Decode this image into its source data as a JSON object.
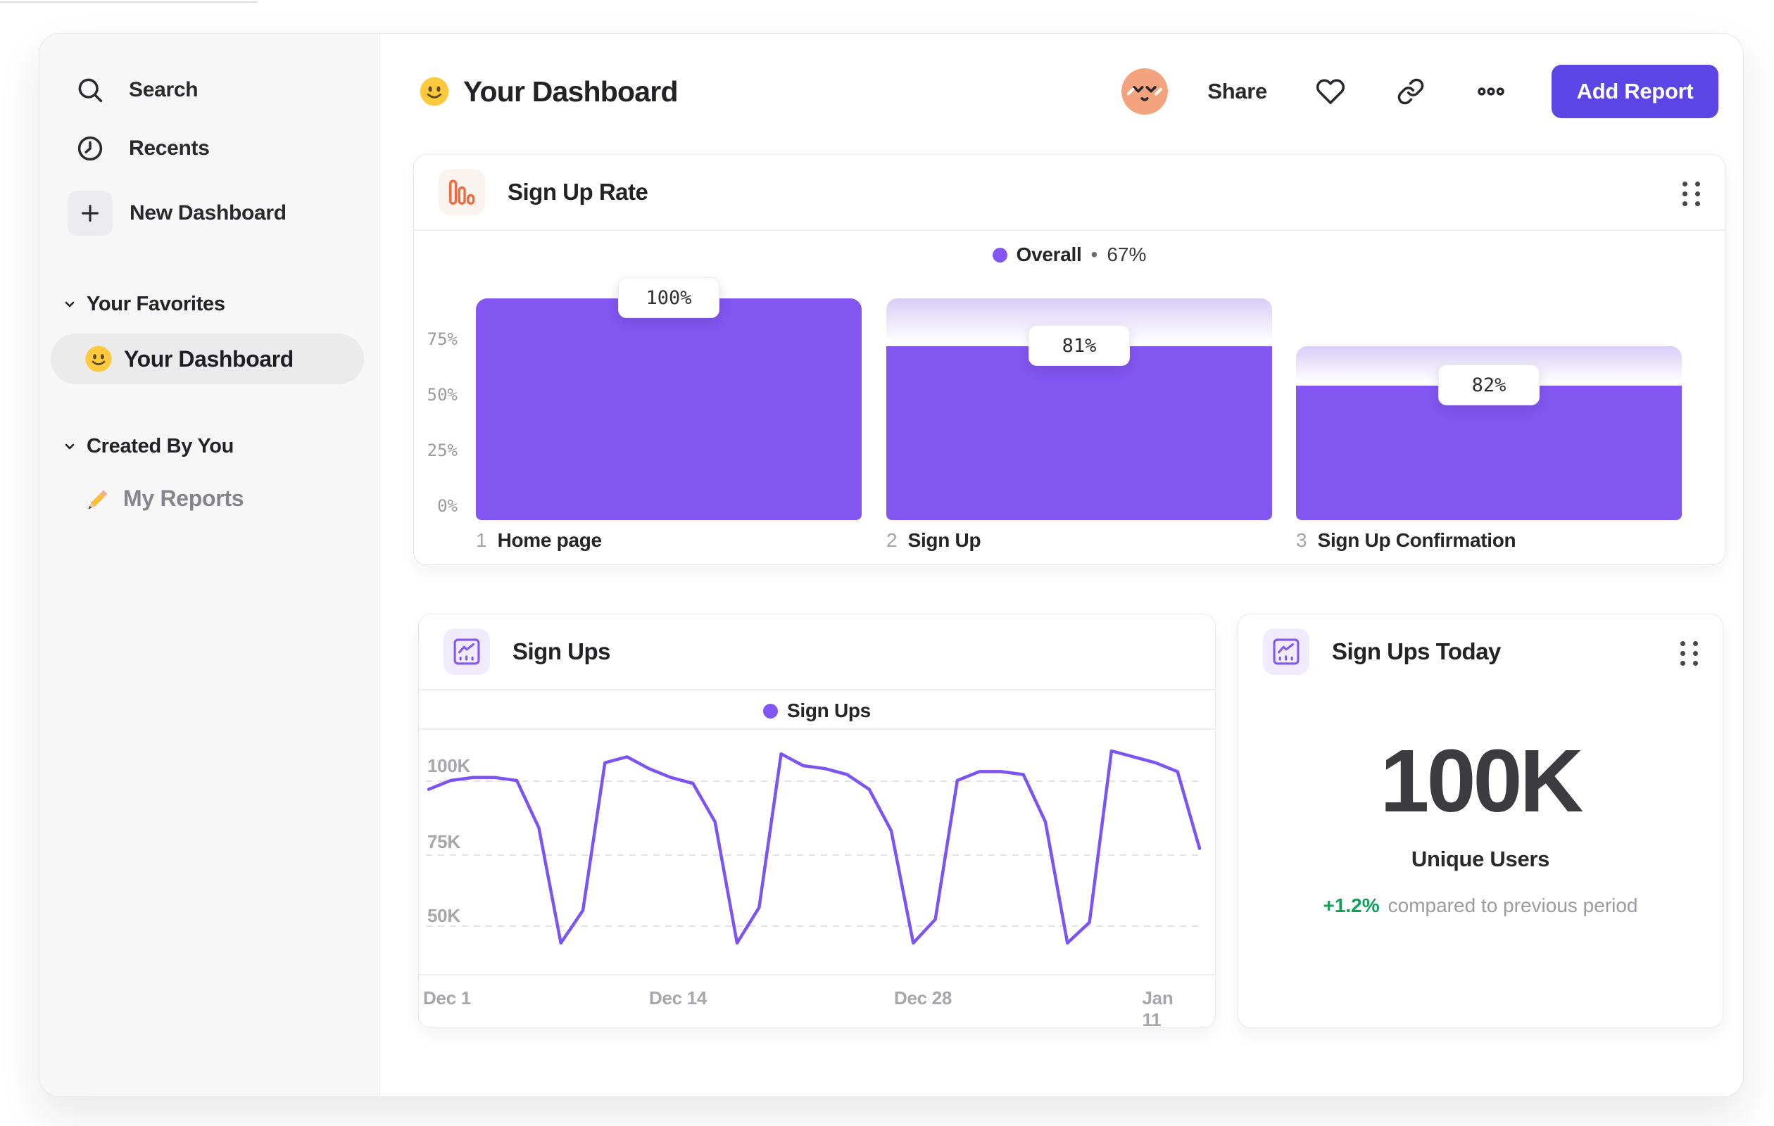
{
  "header": {
    "title": "Your Dashboard",
    "title_emoji": "slightly-smiling-face",
    "share": "Share",
    "add_report": "Add Report",
    "action_icons": [
      "avatar",
      "heart-icon",
      "link-icon",
      "ellipsis-icon"
    ]
  },
  "sidebar": {
    "nav": [
      {
        "icon": "search-icon",
        "label": "Search"
      },
      {
        "icon": "clock-icon",
        "label": "Recents"
      },
      {
        "icon": "plus-icon",
        "label": "New Dashboard"
      }
    ],
    "sections": [
      {
        "title": "Your Favorites",
        "chevron": "chevron-down-icon",
        "items": [
          {
            "icon": "smiley-emoji",
            "label": "Your Dashboard",
            "selected": true
          }
        ]
      },
      {
        "title": "Created By You",
        "chevron": "chevron-down-icon",
        "items": [
          {
            "icon": "pencil-emoji",
            "label": "My Reports",
            "selected": false
          }
        ]
      }
    ]
  },
  "funnel_card": {
    "icon": "bar-chart-icon",
    "title": "Sign Up Rate",
    "legend_label": "Overall",
    "legend_sep": "•",
    "legend_value": "67%",
    "step_nums": [
      "1",
      "2",
      "3"
    ]
  },
  "line_card": {
    "icon": "line-chart-icon",
    "title": "Sign Ups"
  },
  "stat_card": {
    "icon": "line-chart-icon",
    "title": "Sign Ups Today",
    "value": "100K",
    "label": "Unique Users",
    "delta": "+1.2%",
    "delta_note": "compared to previous period"
  },
  "chart_data": [
    {
      "type": "bar",
      "variant": "funnel",
      "title": "Sign Up Rate",
      "categories": [
        "Home page",
        "Sign Up",
        "Sign Up Confirmation"
      ],
      "step_conversion_pct": [
        100,
        81,
        82
      ],
      "badges": [
        "100%",
        "81%",
        "82%"
      ],
      "overall_conversion_pct": 67,
      "axis_heights_pct": [
        100,
        78.5,
        60.5
      ],
      "y_ticks": [
        "75%",
        "50%",
        "25%",
        "0%"
      ],
      "ylim": [
        0,
        100
      ],
      "grid": false,
      "legend_position": "top center",
      "bar_color": "#8356F2",
      "cap_gradient_top": "#D8CDF7"
    },
    {
      "type": "line",
      "title": "Sign Ups",
      "series": [
        {
          "name": "Sign Ups",
          "values": [
            97,
            100,
            101,
            101,
            100,
            84,
            45,
            56,
            106,
            108,
            104,
            101,
            99,
            86,
            45,
            57,
            109,
            105,
            104,
            102,
            97,
            83,
            45,
            53,
            100,
            103,
            103,
            102,
            86,
            45,
            52,
            110,
            108,
            106,
            103,
            77
          ]
        }
      ],
      "values_unit": "K",
      "x_range": [
        "Dec 1",
        "Jan 11"
      ],
      "x_tick_labels": [
        "Dec 1",
        "Dec 14",
        "Dec 28",
        "Jan 11"
      ],
      "y_tick_labels": [
        "100K",
        "75K",
        "50K"
      ],
      "y_gridlines_K": [
        100,
        75,
        50
      ],
      "ylim": [
        40,
        115
      ],
      "grid": "horizontal dashed",
      "legend_position": "top center",
      "line_color": "#7E53F3"
    },
    {
      "type": "single_value",
      "title": "Sign Ups Today",
      "value": "100K",
      "label": "Unique Users",
      "delta_pct": "+1.2%",
      "comparison": "compared to previous period",
      "delta_color": "#0FA05B"
    }
  ]
}
